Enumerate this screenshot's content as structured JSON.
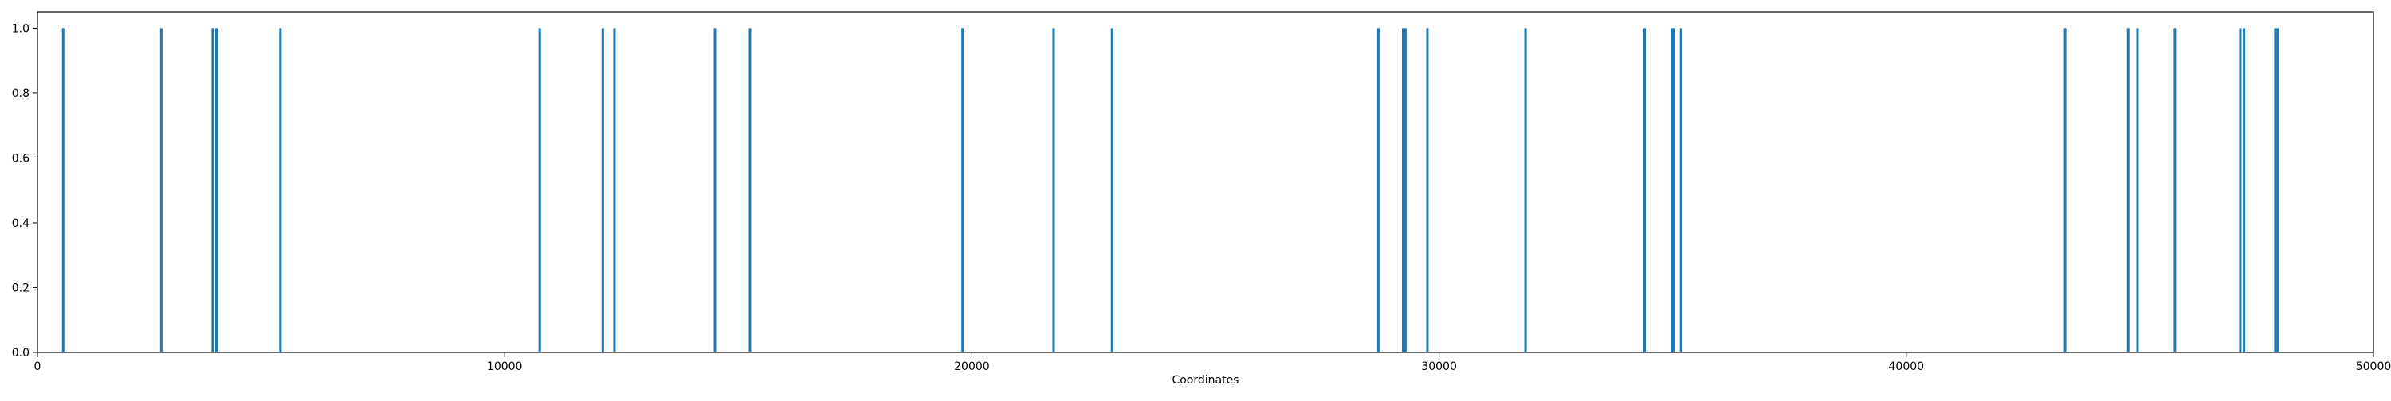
{
  "chart_data": {
    "type": "bar",
    "xlabel": "Coordinates",
    "ylabel": "",
    "xlim": [
      0,
      50000
    ],
    "ylim": [
      0,
      1.05
    ],
    "grid": false,
    "color": "#1f77b4",
    "x_ticks": [
      0,
      10000,
      20000,
      30000,
      40000,
      50000
    ],
    "y_ticks": [
      0.0,
      0.2,
      0.4,
      0.6,
      0.8,
      1.0
    ],
    "x_tick_labels": [
      "0",
      "10000",
      "20000",
      "30000",
      "40000",
      "50000"
    ],
    "y_tick_labels": [
      "0.0",
      "0.2",
      "0.4",
      "0.6",
      "0.8",
      "1.0"
    ],
    "x": [
      550,
      2650,
      3750,
      3830,
      5200,
      10750,
      12100,
      12350,
      14500,
      15250,
      19800,
      21750,
      23000,
      28700,
      29230,
      29280,
      29750,
      31850,
      34400,
      34980,
      35030,
      35180,
      43400,
      44750,
      44950,
      45750,
      47150,
      47230,
      47900,
      47950
    ],
    "values": [
      1,
      1,
      1,
      1,
      1,
      1,
      1,
      1,
      1,
      1,
      1,
      1,
      1,
      1,
      1,
      1,
      1,
      1,
      1,
      1,
      1,
      1,
      1,
      1,
      1,
      1,
      1,
      1,
      1,
      1
    ]
  }
}
